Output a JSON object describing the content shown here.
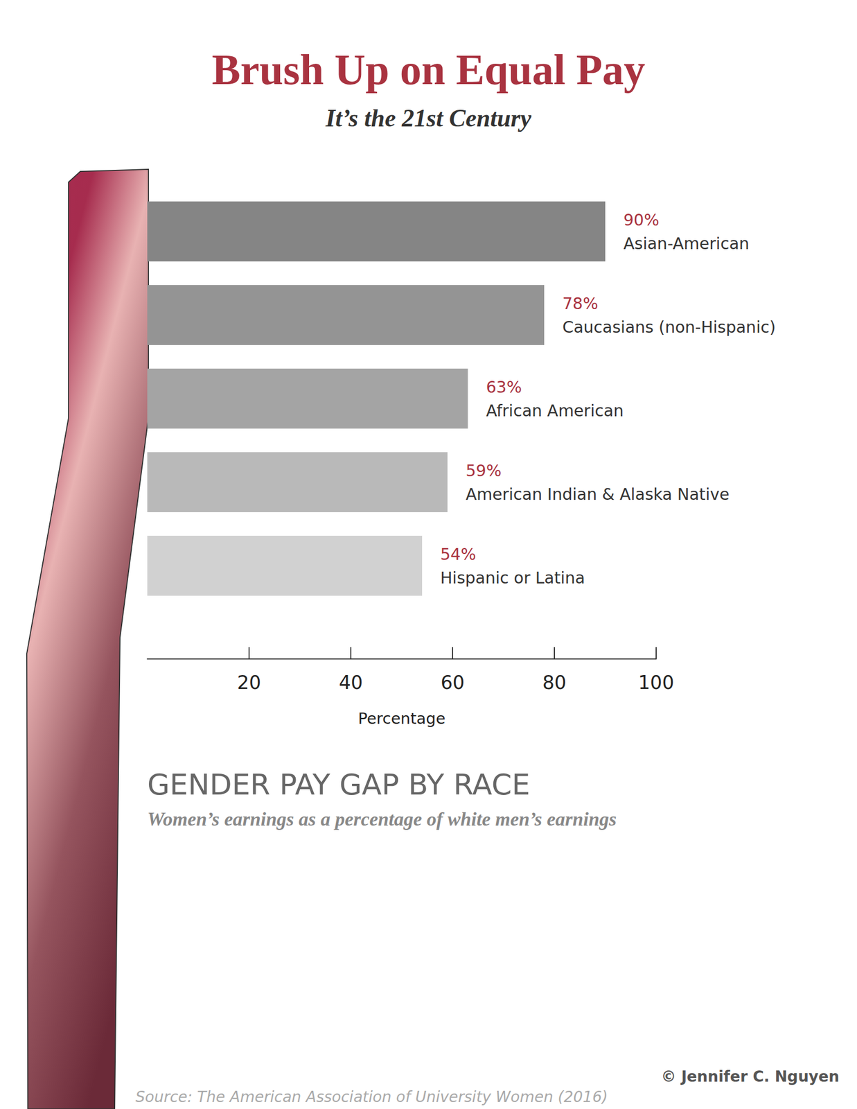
{
  "chart_data": {
    "type": "bar",
    "orientation": "horizontal",
    "title": "Brush Up on Equal Pay",
    "subtitle": "It’s the 21st Century",
    "chart_title": "GENDER PAY GAP BY RACE",
    "chart_subtitle": "Women’s earnings as a percentage of white men’s earnings",
    "categories": [
      "Asian-American",
      "Caucasians (non-Hispanic)",
      "African American",
      "American Indian & Alaska Native",
      "Hispanic or Latina"
    ],
    "values": [
      90,
      78,
      63,
      59,
      54
    ],
    "value_labels": [
      "90%",
      "78%",
      "63%",
      "59%",
      "54%"
    ],
    "colors": [
      "#858585",
      "#949494",
      "#a4a4a4",
      "#b9b9b9",
      "#d1d1d1"
    ],
    "xlabel": "Percentage",
    "xlim": [
      0,
      100
    ],
    "xticks": [
      20,
      40,
      60,
      80,
      100
    ],
    "grid": false,
    "data_labels": true,
    "tick_labels": "x",
    "source": "Source: The American Association of University Women (2016)",
    "credit": "© Jennifer C. Nguyen"
  }
}
